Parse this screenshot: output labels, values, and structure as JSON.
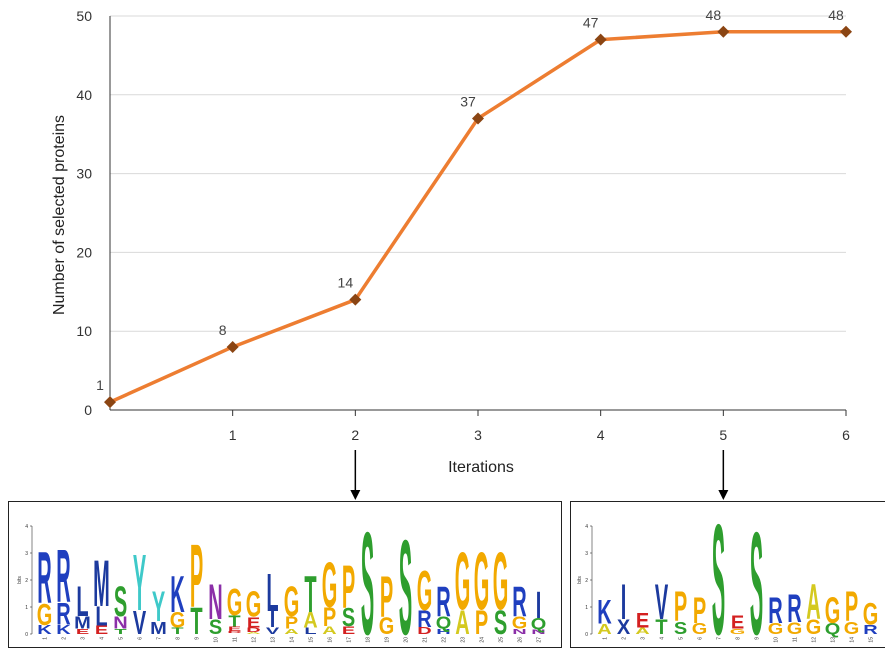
{
  "chart_data": {
    "type": "line",
    "x": [
      0,
      1,
      2,
      3,
      4,
      5,
      6
    ],
    "series": [
      {
        "values": [
          1,
          8,
          14,
          37,
          47,
          48,
          48
        ]
      }
    ],
    "data_labels": [
      "1",
      "8",
      "14",
      "37",
      "47",
      "48",
      "48"
    ],
    "x_tick_labels": [
      "1",
      "2",
      "3",
      "4",
      "5",
      "6"
    ],
    "y_tick_labels": [
      "0",
      "10",
      "20",
      "30",
      "40",
      "50"
    ],
    "xlabel": "Iterations",
    "ylabel": "Number of selected proteins",
    "xlim": [
      0,
      6
    ],
    "ylim": [
      0,
      50
    ],
    "grid": "horizontal",
    "line_color": "#ED7D31",
    "marker_color": "#8B4513",
    "marker": "diamond"
  },
  "logos": [
    {
      "attached_to_iteration": 2,
      "y_axis_label": "bits",
      "y_ticks": [
        "0",
        "1",
        "2",
        "3",
        "4"
      ],
      "position_labels": [
        "1",
        "2",
        "3",
        "4",
        "5",
        "6",
        "7",
        "8",
        "9",
        "10",
        "11",
        "12",
        "13",
        "14",
        "15",
        "16",
        "17",
        "18",
        "19",
        "20",
        "21",
        "22",
        "23",
        "24",
        "25",
        "26",
        "27"
      ],
      "columns": [
        [
          "R",
          "G",
          "K"
        ],
        [
          "R",
          "R",
          "K"
        ],
        [
          "L",
          "M",
          "E"
        ],
        [
          "M",
          "L",
          "E"
        ],
        [
          "S",
          "N",
          "T"
        ],
        [
          "Y",
          "V"
        ],
        [
          "Y",
          "M"
        ],
        [
          "K",
          "G",
          "T"
        ],
        [
          "P",
          "T"
        ],
        [
          "N",
          "S"
        ],
        [
          "G",
          "T",
          "E",
          "D",
          "A"
        ],
        [
          "G",
          "E",
          "D",
          "A"
        ],
        [
          "L",
          "I",
          "V"
        ],
        [
          "G",
          "P",
          "A"
        ],
        [
          "T",
          "A",
          "L"
        ],
        [
          "G",
          "P",
          "A"
        ],
        [
          "P",
          "S",
          "E"
        ],
        [
          "S"
        ],
        [
          "P",
          "G"
        ],
        [
          "S"
        ],
        [
          "G",
          "R",
          "D"
        ],
        [
          "R",
          "Q",
          "H"
        ],
        [
          "G",
          "A"
        ],
        [
          "G",
          "P"
        ],
        [
          "G",
          "S"
        ],
        [
          "R",
          "G",
          "N"
        ],
        [
          "I",
          "Q",
          "N"
        ]
      ]
    },
    {
      "attached_to_iteration": 5,
      "y_axis_label": "bits",
      "y_ticks": [
        "0",
        "1",
        "2",
        "3",
        "4"
      ],
      "position_labels": [
        "1",
        "2",
        "3",
        "4",
        "5",
        "6",
        "7",
        "8",
        "9",
        "10",
        "11",
        "12",
        "13",
        "14",
        "15"
      ],
      "columns": [
        [
          "K",
          "A"
        ],
        [
          "I",
          "X"
        ],
        [
          "E",
          "A"
        ],
        [
          "V",
          "T"
        ],
        [
          "P",
          "S"
        ],
        [
          "P",
          "G"
        ],
        [
          "S"
        ],
        [
          "E",
          "G"
        ],
        [
          "S"
        ],
        [
          "R",
          "G"
        ],
        [
          "R",
          "G"
        ],
        [
          "A",
          "G"
        ],
        [
          "G",
          "Q"
        ],
        [
          "P",
          "G"
        ],
        [
          "G",
          "R"
        ]
      ]
    }
  ]
}
